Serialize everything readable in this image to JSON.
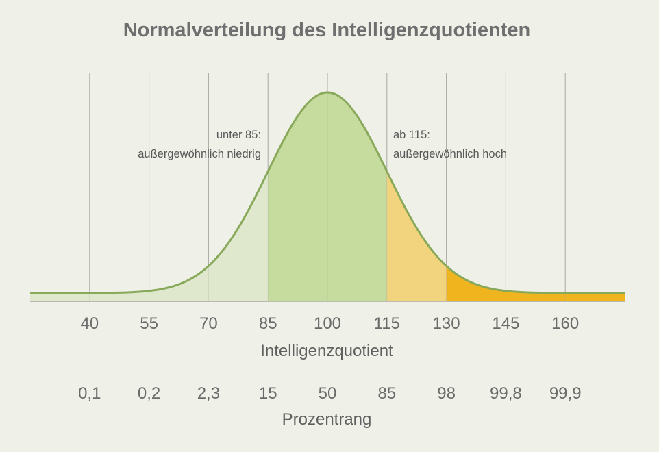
{
  "colors": {
    "background": "#eff0e8",
    "gridline": "#a8a8a0",
    "curve": "#88a85a",
    "fill_low": "#dfe8cc",
    "fill_mid": "#c6db9e",
    "fill_high": "#f2d37e",
    "fill_very_high": "#f0b41e",
    "text": "#6a6a6a"
  },
  "chart_data": {
    "type": "area",
    "title": "Normalverteilung des Intelligenzquotienten",
    "xlabel": "Intelligenzquotient",
    "secondary_xlabel": "Prozentrang",
    "x_ticks": [
      40,
      55,
      70,
      85,
      100,
      115,
      130,
      145,
      160
    ],
    "x_tick_labels": [
      "40",
      "55",
      "70",
      "85",
      "100",
      "115",
      "130",
      "145",
      "160"
    ],
    "percentile_labels": [
      "0,1",
      "0,2",
      "2,3",
      "15",
      "50",
      "85",
      "98",
      "99,8",
      "99,9"
    ],
    "xlim": [
      25,
      175
    ],
    "distribution": {
      "mean": 100,
      "sd": 15
    },
    "grid": true,
    "regions": [
      {
        "from": 25,
        "to": 85,
        "color": "#dfe8cc"
      },
      {
        "from": 85,
        "to": 115,
        "color": "#c6db9e"
      },
      {
        "from": 115,
        "to": 130,
        "color": "#f2d37e"
      },
      {
        "from": 130,
        "to": 175,
        "color": "#f0b41e"
      }
    ],
    "annotations": [
      {
        "id": "low",
        "lines": [
          "unter 85:",
          "außergewöhnlich niedrig"
        ],
        "anchor_x": 85
      },
      {
        "id": "high",
        "lines": [
          "ab 115:",
          "außergewöhnlich hoch"
        ],
        "anchor_x": 115
      }
    ]
  }
}
